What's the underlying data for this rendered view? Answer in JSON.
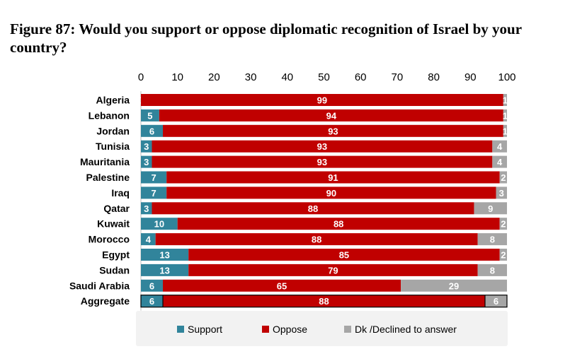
{
  "title": "Figure 87: Would you support or oppose diplomatic recognition of Israel by your country?",
  "chart_data": {
    "type": "bar",
    "orientation": "horizontal",
    "stacked": true,
    "categories": [
      "Algeria",
      "Lebanon",
      "Jordan",
      "Tunisia",
      "Mauritania",
      "Palestine",
      "Iraq",
      "Qatar",
      "Kuwait",
      "Morocco",
      "Egypt",
      "Sudan",
      "Saudi Arabia",
      "Aggregate"
    ],
    "series": [
      {
        "name": "Support",
        "color": "#31849b",
        "values": [
          0,
          5,
          6,
          3,
          3,
          7,
          7,
          3,
          10,
          4,
          13,
          13,
          6,
          6
        ]
      },
      {
        "name": "Oppose",
        "color": "#c00000",
        "values": [
          99,
          94,
          93,
          93,
          93,
          91,
          90,
          88,
          88,
          88,
          85,
          79,
          65,
          88
        ]
      },
      {
        "name": "Dk /Declined to answer",
        "color": "#a6a6a6",
        "values": [
          1,
          1,
          1,
          4,
          4,
          2,
          3,
          9,
          2,
          8,
          2,
          8,
          29,
          6
        ]
      }
    ],
    "xlim": [
      0,
      100
    ],
    "xticks": [
      0,
      10,
      20,
      30,
      40,
      50,
      60,
      70,
      80,
      90,
      100
    ],
    "xaxis_position": "top",
    "grid": false,
    "legend_position": "bottom",
    "highlighted_category": "Aggregate"
  }
}
